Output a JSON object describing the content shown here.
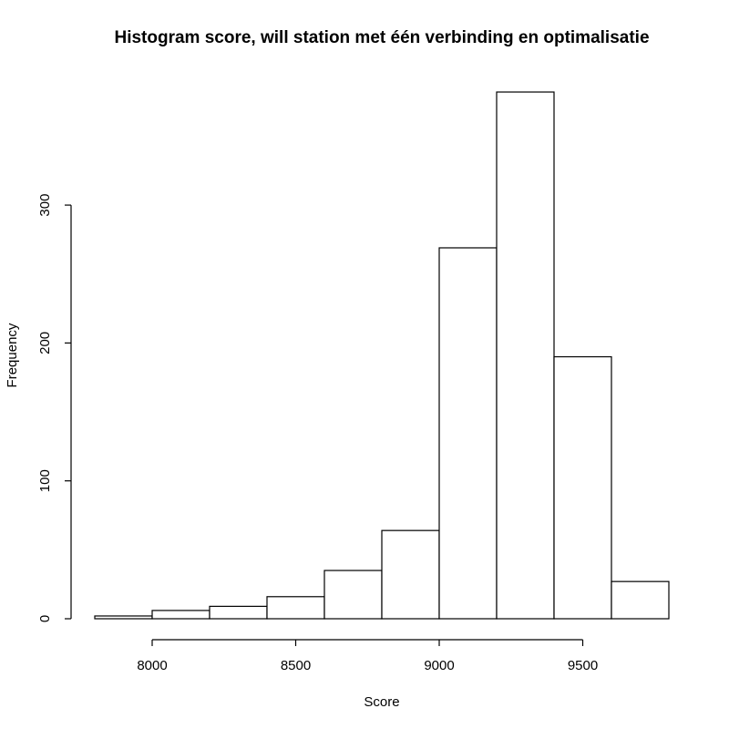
{
  "chart_data": {
    "type": "bar",
    "title": "Histogram score, will station met één verbinding en optimalisatie",
    "xlabel": "Score",
    "ylabel": "Frequency",
    "bins": [
      [
        7800,
        8000
      ],
      [
        8000,
        8200
      ],
      [
        8200,
        8400
      ],
      [
        8400,
        8600
      ],
      [
        8600,
        8800
      ],
      [
        8800,
        9000
      ],
      [
        9000,
        9200
      ],
      [
        9200,
        9400
      ],
      [
        9400,
        9600
      ],
      [
        9600,
        9800
      ]
    ],
    "values": [
      2,
      6,
      9,
      16,
      35,
      64,
      269,
      382,
      190,
      27
    ],
    "xlim": [
      7800,
      9800
    ],
    "ylim": [
      0,
      382
    ],
    "xticks": [
      8000,
      8500,
      9000,
      9500
    ],
    "yticks": [
      0,
      100,
      200,
      300
    ],
    "grid": false,
    "legend": "none",
    "colors": {
      "bar_fill": "#ffffff",
      "bar_stroke": "#000000"
    }
  }
}
